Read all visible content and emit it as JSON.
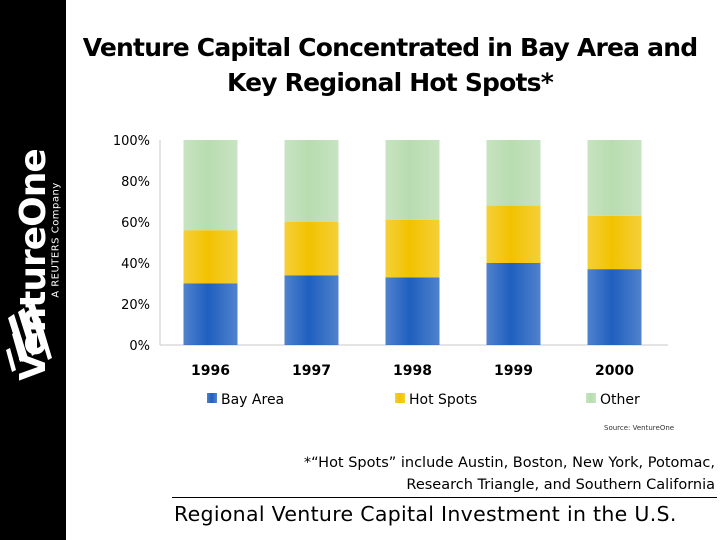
{
  "logo": {
    "wordmark": "VentureOne",
    "tagline": "A REUTERS Company",
    "mark_icon": "slanted-stripes-icon"
  },
  "title_line1": "Venture Capital Concentrated in Bay Area and",
  "title_line2": "Key Regional Hot Spots*",
  "source": "Source: VentureOne",
  "footnote_line1": "*“Hot Spots” include Austin, Boston, New York, Potomac,",
  "footnote_line2": "Research Triangle, and Southern California",
  "footer": "Regional Venture Capital Investment in the U.S.",
  "chart_data": {
    "type": "bar",
    "stacked": true,
    "categories": [
      "1996",
      "1997",
      "1998",
      "1999",
      "2000"
    ],
    "series": [
      {
        "name": "Bay Area",
        "values": [
          30,
          34,
          33,
          40,
          37
        ],
        "color": "#1f5fbf"
      },
      {
        "name": "Hot Spots",
        "values": [
          26,
          26,
          28,
          28,
          26
        ],
        "color": "#f2c200"
      },
      {
        "name": "Other",
        "values": [
          44,
          40,
          39,
          32,
          37
        ],
        "color": "#b8dcb0"
      }
    ],
    "ylim": [
      0,
      100
    ],
    "yticks": [
      "0%",
      "20%",
      "40%",
      "60%",
      "80%",
      "100%"
    ],
    "legend_position": "bottom",
    "grid": false
  }
}
